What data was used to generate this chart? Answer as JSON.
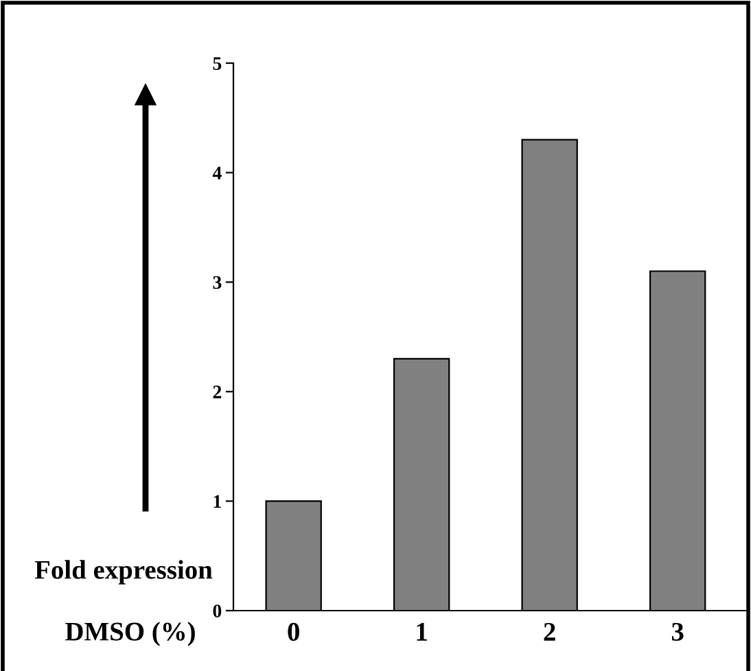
{
  "chart_data": {
    "type": "bar",
    "xlabel": "DMSO (%)",
    "ylabel": "Fold expression",
    "categories": [
      "0",
      "1",
      "2",
      "3"
    ],
    "values": [
      1,
      2.3,
      4.3,
      3.1
    ],
    "color": "#808080",
    "ylim": [
      0,
      5
    ],
    "yticks": [
      0,
      1,
      2,
      3,
      4,
      5
    ],
    "grid": false
  }
}
